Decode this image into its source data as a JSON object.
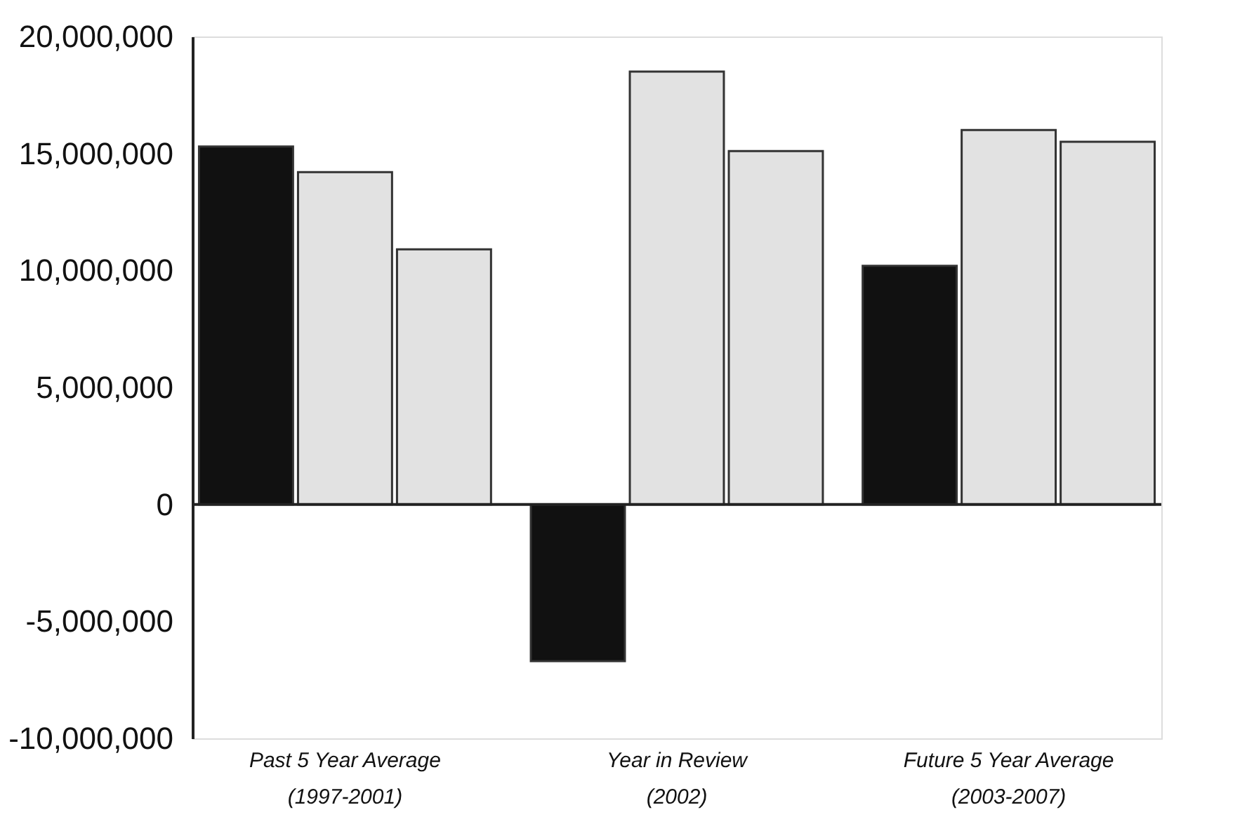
{
  "chart_data": {
    "type": "bar",
    "categories": [
      "Past 5 Year Average\n(1997-2001)",
      "Year in Review\n(2002)",
      "Future 5 Year Average\n(2003-2007)"
    ],
    "series": [
      {
        "color": "#111111",
        "values": [
          15300000,
          -6700000,
          10200000
        ]
      },
      {
        "color": "#e2e2e2",
        "values": [
          14200000,
          18500000,
          16000000
        ]
      },
      {
        "color": "#e2e2e2",
        "values": [
          10900000,
          15100000,
          15500000
        ]
      }
    ],
    "ylim": [
      -10000000,
      20000000
    ],
    "yticks": [
      {
        "value": -10000000,
        "label": "-10,000,000"
      },
      {
        "value": -5000000,
        "label": "-5,000,000"
      },
      0,
      {
        "value": 5000000,
        "label": "5,000,000"
      },
      {
        "value": 10000000,
        "label": "10,000,000"
      },
      {
        "value": 15000000,
        "label": "15,000,000"
      },
      {
        "value": 20000000,
        "label": "20,000,000"
      }
    ],
    "ref_lines": [
      {
        "axis": "y",
        "value": 0,
        "color": "#222222"
      }
    ],
    "grid": false,
    "legend": false
  }
}
